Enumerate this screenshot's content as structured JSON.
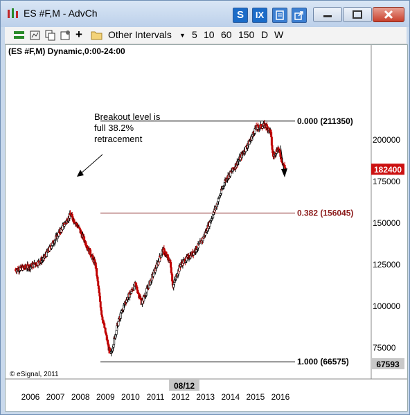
{
  "window": {
    "title": "ES #F,M - AdvCh"
  },
  "title_buttons": {
    "s_label": "S",
    "ix_label": "IX"
  },
  "toolbar": {
    "other_intervals_label": "Other Intervals",
    "intervals": [
      "5",
      "10",
      "60",
      "150",
      "D",
      "W"
    ]
  },
  "chart_data": {
    "type": "candlestick",
    "header": "(ES #F,M) Dynamic,0:00-24:00",
    "ylim": [
      65000,
      215000
    ],
    "y_ticks": [
      75000,
      100000,
      125000,
      150000,
      175000,
      200000
    ],
    "y_tick_labels": [
      "75000",
      "100000",
      "125000",
      "150000",
      "175000",
      "200000"
    ],
    "x_ticks": [
      "2006",
      "2007",
      "2008",
      "2009",
      "2010",
      "2011",
      "2012",
      "2013",
      "2014",
      "2015",
      "2016"
    ],
    "cursor_date": "08/12",
    "last_price_label": "182400",
    "cursor_price_label": "67593",
    "credit": "© eSignal, 2011",
    "fib_levels": [
      {
        "label": "0.000 (211350)",
        "ratio": 0.0,
        "value": 211350
      },
      {
        "label": "0.382 (156045)",
        "ratio": 0.382,
        "value": 156045
      },
      {
        "label": "1.000 (66575)",
        "ratio": 1.0,
        "value": 66575
      }
    ],
    "annotation": [
      "Breakout level is",
      "full 38.2%",
      "retracement"
    ],
    "price_path": [
      [
        2005.4,
        122000
      ],
      [
        2006.0,
        124000
      ],
      [
        2006.5,
        128000
      ],
      [
        2006.9,
        138000
      ],
      [
        2007.3,
        148000
      ],
      [
        2007.6,
        155000
      ],
      [
        2007.9,
        148000
      ],
      [
        2008.3,
        135000
      ],
      [
        2008.6,
        125000
      ],
      [
        2008.85,
        95000
      ],
      [
        2009.0,
        84000
      ],
      [
        2009.2,
        70000
      ],
      [
        2009.5,
        90000
      ],
      [
        2009.8,
        103000
      ],
      [
        2010.2,
        113000
      ],
      [
        2010.45,
        102000
      ],
      [
        2010.8,
        115000
      ],
      [
        2011.3,
        134000
      ],
      [
        2011.6,
        126000
      ],
      [
        2011.7,
        112000
      ],
      [
        2012.0,
        125000
      ],
      [
        2012.5,
        132000
      ],
      [
        2012.85,
        139000
      ],
      [
        2013.3,
        155000
      ],
      [
        2013.8,
        176000
      ],
      [
        2014.1,
        182000
      ],
      [
        2014.5,
        192000
      ],
      [
        2014.8,
        200000
      ],
      [
        2015.0,
        207000
      ],
      [
        2015.4,
        209000
      ],
      [
        2015.6,
        205000
      ],
      [
        2015.7,
        190000
      ],
      [
        2015.9,
        195000
      ],
      [
        2016.1,
        186000
      ],
      [
        2016.2,
        182400
      ]
    ]
  }
}
